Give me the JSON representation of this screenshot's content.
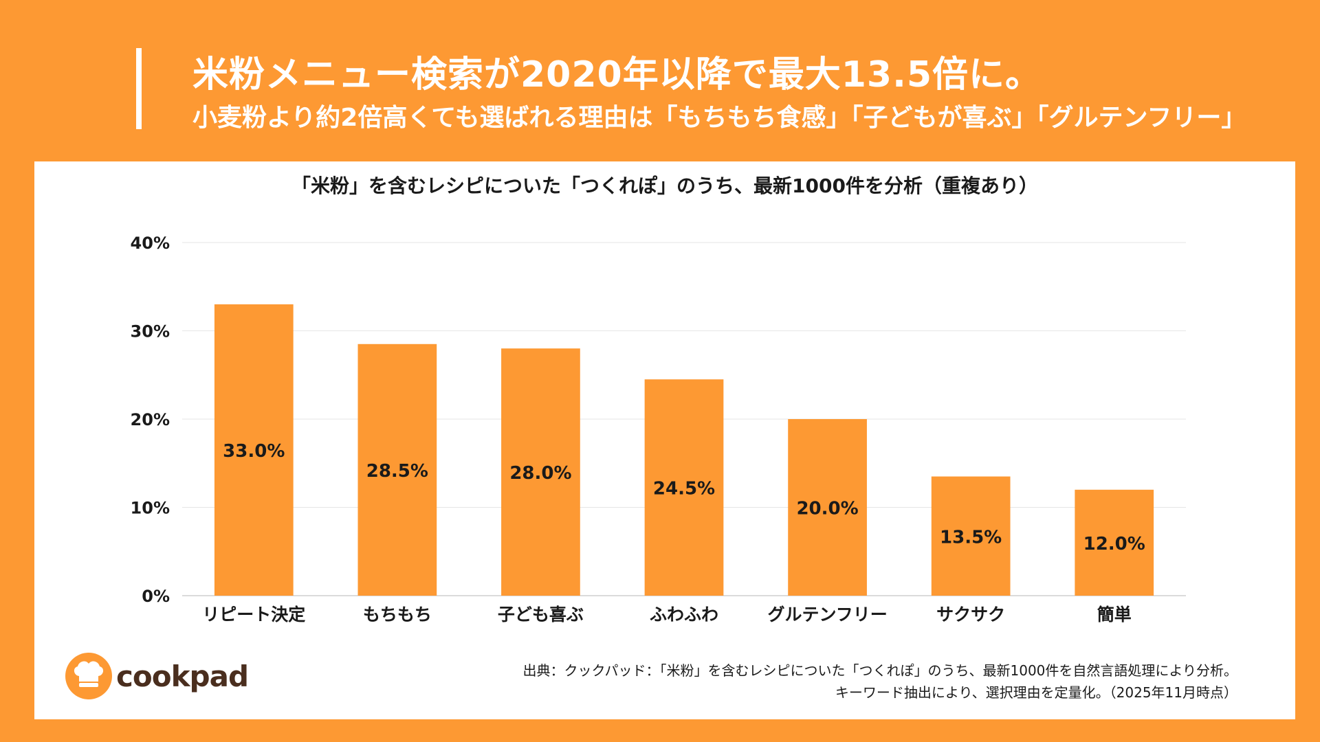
{
  "header": {
    "title": "米粉メニュー検索が2020年以降で最大13.5倍に。",
    "subtitle": "小麦粉より約2倍高くても選ばれる理由は「もちもち食感」「子どもが喜ぶ」「グルテンフリー」"
  },
  "chart_data": {
    "type": "bar",
    "title": "「米粉」を含むレシピについた「つくれぽ」のうち、最新1000件を分析（重複あり）",
    "categories": [
      "リピート決定",
      "もちもち",
      "子ども喜ぶ",
      "ふわふわ",
      "グルテンフリー",
      "サクサク",
      "簡単"
    ],
    "values": [
      33.0,
      28.5,
      28.0,
      24.5,
      20.0,
      13.5,
      12.0
    ],
    "data_labels": [
      "33.0%",
      "28.5%",
      "28.0%",
      "24.5%",
      "20.0%",
      "13.5%",
      "12.0%"
    ],
    "y_ticks": [
      0,
      10,
      20,
      30,
      40
    ],
    "y_tick_labels": [
      "0%",
      "10%",
      "20%",
      "30%",
      "40%"
    ],
    "ylim": [
      0,
      40
    ],
    "xlabel": "",
    "ylabel": "",
    "grid": true,
    "bar_color": "#fd9933"
  },
  "brand": {
    "logo_text": "cookpad",
    "logo_icon": "chef-hat-icon"
  },
  "source": {
    "line1": "出典：クックパッド：「米粉」を含むレシピについた「つくれぽ」のうち、最新1000件を自然言語処理により分析。",
    "line2": "キーワード抽出により、選択理由を定量化。（2025年11月時点）"
  },
  "colors": {
    "background": "#fd9933",
    "panel": "#ffffff",
    "text": "#1a1a1a",
    "logo_text": "#4a2e1e"
  }
}
